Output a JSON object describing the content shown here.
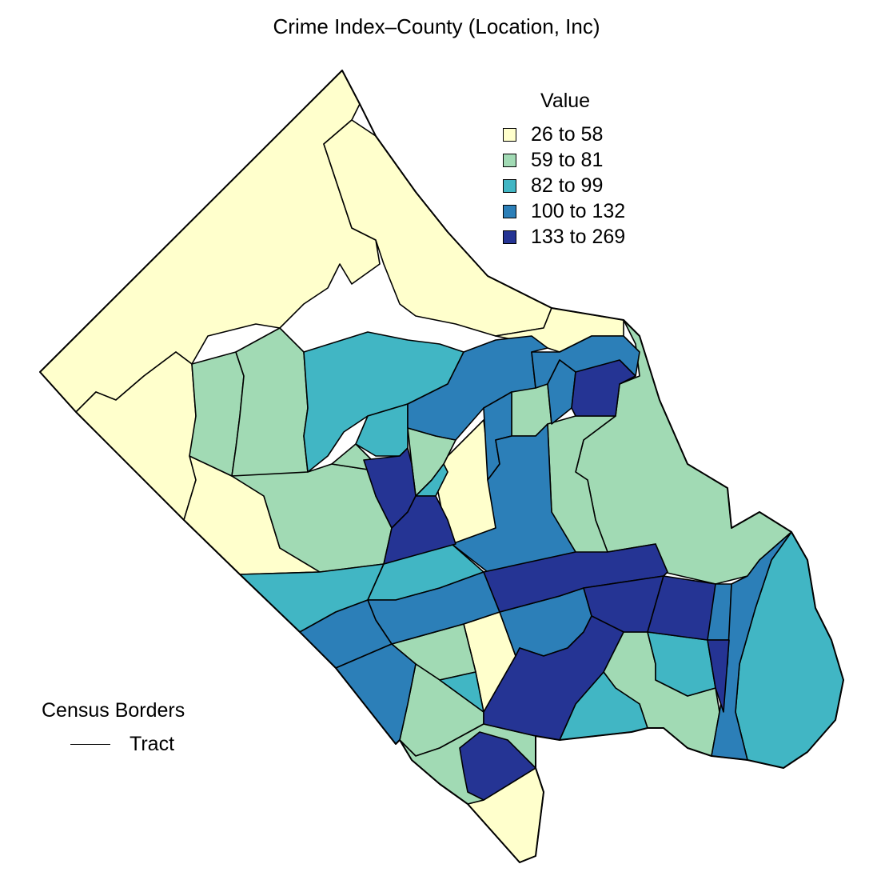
{
  "title": "Crime Index–County (Location, Inc)",
  "legend": {
    "title": "Value",
    "classes": [
      {
        "label": "26 to 58",
        "color": "#ffffcc"
      },
      {
        "label": "59 to 81",
        "color": "#a1dab4"
      },
      {
        "label": "82 to 99",
        "color": "#41b6c4"
      },
      {
        "label": "100 to 132",
        "color": "#2c7fb8"
      },
      {
        "label": "133 to 269",
        "color": "#253494"
      }
    ]
  },
  "borders": {
    "title": "Census Borders",
    "item": "Tract"
  }
}
